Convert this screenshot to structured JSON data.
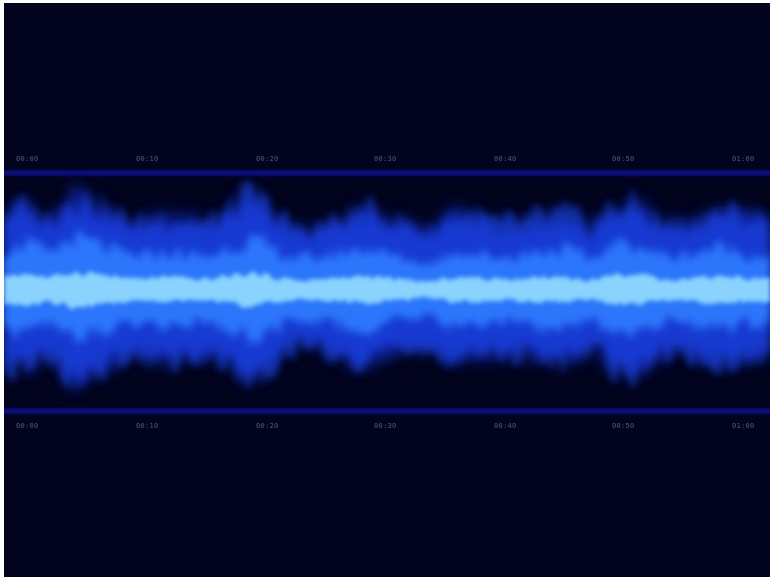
{
  "timecodes_top": [
    "00:00",
    "00:10",
    "00:20",
    "00:30",
    "00:40",
    "00:50",
    "01:00"
  ],
  "timecodes_bottom": [
    "00:00",
    "00:10",
    "00:20",
    "00:30",
    "00:40",
    "00:50",
    "01:00"
  ],
  "colors": {
    "background": "#02031c",
    "rule": "#0a0e7a",
    "wave_outer": "#1535e0",
    "wave_mid": "#2e7dff",
    "wave_core": "#8fd8ff",
    "timecode_text": "#55597a"
  },
  "waveform": {
    "outer_amplitude": [
      0.66,
      0.7,
      0.58,
      0.8,
      0.72,
      0.62,
      0.56,
      0.62,
      0.6,
      0.55,
      0.66,
      0.8,
      0.64,
      0.5,
      0.52,
      0.6,
      0.66,
      0.62,
      0.54,
      0.48,
      0.66,
      0.6,
      0.55,
      0.58,
      0.62,
      0.64,
      0.52,
      0.7,
      0.72,
      0.58,
      0.54,
      0.62,
      0.66,
      0.6,
      0.6
    ],
    "mid_amplitude": [
      0.34,
      0.4,
      0.3,
      0.44,
      0.4,
      0.32,
      0.28,
      0.32,
      0.3,
      0.28,
      0.36,
      0.42,
      0.34,
      0.26,
      0.28,
      0.32,
      0.36,
      0.3,
      0.26,
      0.22,
      0.34,
      0.3,
      0.28,
      0.3,
      0.34,
      0.34,
      0.26,
      0.38,
      0.4,
      0.3,
      0.28,
      0.34,
      0.36,
      0.3,
      0.3
    ],
    "core_amplitude": [
      0.12,
      0.14,
      0.1,
      0.15,
      0.14,
      0.11,
      0.09,
      0.11,
      0.1,
      0.09,
      0.12,
      0.14,
      0.11,
      0.08,
      0.09,
      0.1,
      0.12,
      0.1,
      0.08,
      0.07,
      0.11,
      0.1,
      0.09,
      0.1,
      0.11,
      0.11,
      0.08,
      0.13,
      0.13,
      0.1,
      0.09,
      0.11,
      0.12,
      0.1,
      0.1
    ]
  }
}
